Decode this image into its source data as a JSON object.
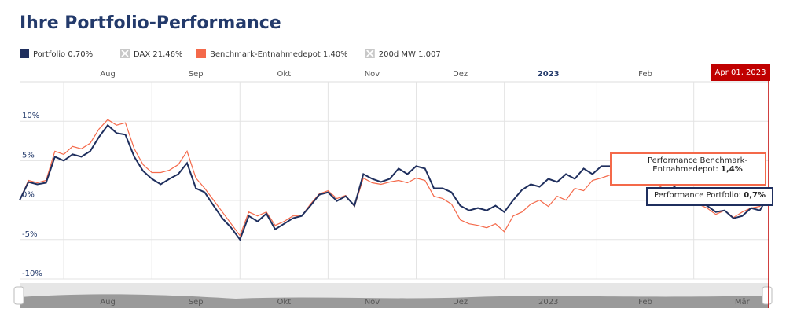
{
  "chart_data": {
    "type": "line",
    "title": "Ihre Portfolio-Performance",
    "categories": [
      null,
      null,
      null,
      null,
      null,
      null,
      null,
      null,
      null,
      null,
      "Aug",
      null,
      null,
      null,
      null,
      null,
      null,
      null,
      null,
      null,
      "Sep",
      null,
      null,
      null,
      null,
      null,
      null,
      null,
      null,
      null,
      "Okt",
      null,
      null,
      null,
      null,
      null,
      null,
      null,
      null,
      null,
      "Nov",
      null,
      null,
      null,
      null,
      null,
      null,
      null,
      null,
      null,
      "Dez",
      null,
      null,
      null,
      null,
      null,
      null,
      null,
      null,
      null,
      "2023",
      null,
      null,
      null,
      null,
      null,
      null,
      null,
      null,
      null,
      null,
      "Feb",
      null,
      null,
      null,
      null,
      null,
      null,
      null,
      null,
      null,
      null,
      null,
      null,
      null,
      null
    ],
    "series": [
      {
        "name": "Portfolio 0,70%",
        "color": "#1f2f5e",
        "values": [
          0,
          2.3,
          2,
          2.2,
          5.5,
          5,
          5.8,
          5.5,
          6.2,
          8,
          9.5,
          8.5,
          8.3,
          5.5,
          3.7,
          2.7,
          2,
          2.7,
          3.3,
          4.7,
          1.5,
          1,
          -0.7,
          -2.3,
          -3.5,
          -5,
          -2,
          -2.7,
          -1.7,
          -3.7,
          -3,
          -2.3,
          -2,
          -0.7,
          0.7,
          1,
          -0.1,
          0.5,
          -0.7,
          3.3,
          2.7,
          2.3,
          2.7,
          4,
          3.3,
          4.3,
          4,
          1.5,
          1.5,
          1,
          -0.7,
          -1.3,
          -1,
          -1.3,
          -0.7,
          -1.5,
          0,
          1.3,
          2,
          1.7,
          2.7,
          2.3,
          3.3,
          2.7,
          4,
          3.3,
          4.3,
          4.3,
          4.5,
          4,
          4.3,
          4,
          3,
          2.3,
          2,
          1,
          0.5,
          -0.3,
          -0.7,
          -1.5,
          -1.3,
          -2.3,
          -2,
          -1,
          -1.3,
          0.7
        ]
      },
      {
        "name": "Benchmark-Entnahmedepot 1,40%",
        "color": "#f4694a",
        "values": [
          0,
          2.5,
          2.2,
          2.5,
          6.2,
          5.8,
          6.8,
          6.5,
          7.2,
          9,
          10.2,
          9.5,
          9.8,
          6.5,
          4.5,
          3.5,
          3.5,
          3.8,
          4.5,
          6.2,
          2.8,
          1.5,
          0,
          -1.5,
          -3,
          -4.5,
          -1.5,
          -2,
          -1.5,
          -3.2,
          -2.7,
          -2,
          -2,
          -0.5,
          0.8,
          1.2,
          0.2,
          0.6,
          -0.8,
          2.8,
          2.2,
          2,
          2.3,
          2.5,
          2.2,
          2.8,
          2.5,
          0.5,
          0.2,
          -0.5,
          -2.5,
          -3,
          -3.2,
          -3.5,
          -3,
          -4,
          -2,
          -1.5,
          -0.5,
          0,
          -0.8,
          0.5,
          0,
          1.5,
          1.2,
          2.5,
          2.8,
          3.2,
          2.5,
          3,
          3.2,
          2.8,
          2.2,
          1.5,
          1.5,
          0.8,
          0,
          -0.5,
          -1,
          -1.8,
          -1.3,
          -2.2,
          -1.5,
          -1,
          -0.8,
          1.4
        ]
      }
    ],
    "disabled_legend": [
      "DAX 21,46%",
      "200d MW 1.007"
    ],
    "ylim": [
      -10,
      15
    ],
    "yticks": [
      {
        "value": 10,
        "label": "10%"
      },
      {
        "value": 5,
        "label": "5%"
      },
      {
        "value": 0,
        "label": "0%"
      },
      {
        "value": -5,
        "label": "-5%"
      },
      {
        "value": -10,
        "label": "-10%"
      }
    ],
    "grid": true,
    "crosshair_label": "Apr 01, 2023",
    "tooltips": [
      {
        "label": "Performance Benchmark-Entnahmedepot:",
        "value_label": "1,4%"
      },
      {
        "label": "Performance Portfolio:",
        "value_label": "0,7%"
      }
    ],
    "navigator_labels": [
      "Aug",
      "Sep",
      "Okt",
      "Nov",
      "Dez",
      "2023",
      "Feb",
      "Mär"
    ]
  }
}
